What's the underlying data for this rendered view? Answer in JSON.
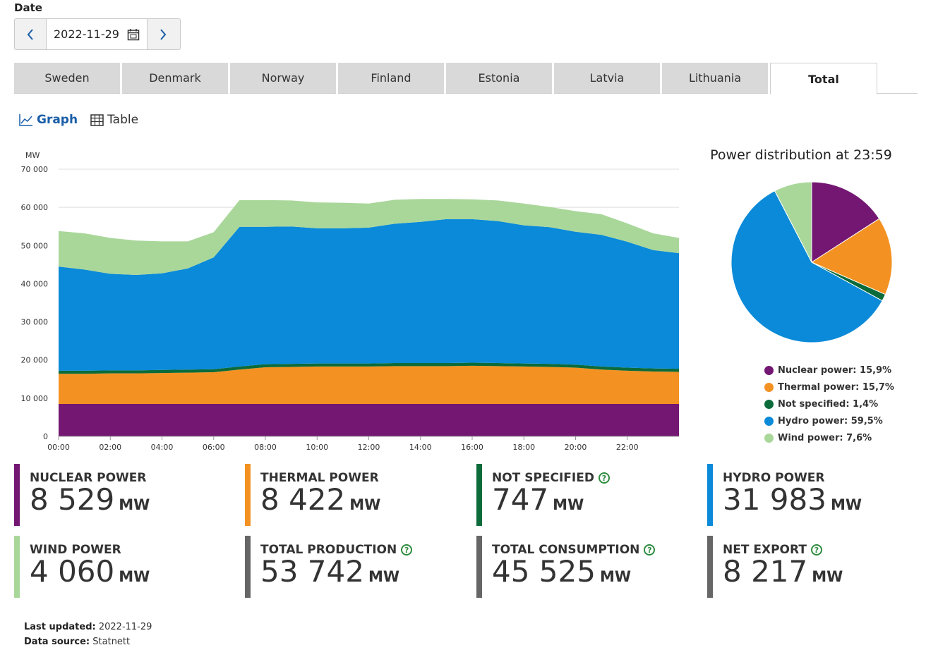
{
  "date_label": "Date",
  "date_value": "2022-11-29",
  "tabs": [
    "Sweden",
    "Denmark",
    "Norway",
    "Finland",
    "Estonia",
    "Latvia",
    "Lithuania",
    "Total"
  ],
  "active_tab": "Total",
  "view": {
    "graph": "Graph",
    "table": "Table"
  },
  "pie_title": "Power distribution at 23:59",
  "legend": [
    {
      "label": "Nuclear power: 15,9%",
      "color": "#731772"
    },
    {
      "label": "Thermal power: 15,7%",
      "color": "#f39222"
    },
    {
      "label": "Not specified: 1,4%",
      "color": "#0b6b3a"
    },
    {
      "label": "Hydro power: 59,5%",
      "color": "#0a8ad8"
    },
    {
      "label": "Wind power: 7,6%",
      "color": "#a9d79a"
    }
  ],
  "stats": [
    {
      "label": "NUCLEAR POWER",
      "value": "8 529",
      "unit": "MW",
      "color": "#731772",
      "help": false
    },
    {
      "label": "THERMAL POWER",
      "value": "8 422",
      "unit": "MW",
      "color": "#f39222",
      "help": false
    },
    {
      "label": "NOT SPECIFIED",
      "value": "747",
      "unit": "MW",
      "color": "#0b6b3a",
      "help": true
    },
    {
      "label": "HYDRO POWER",
      "value": "31 983",
      "unit": "MW",
      "color": "#0a8ad8",
      "help": false
    },
    {
      "label": "WIND POWER",
      "value": "4 060",
      "unit": "MW",
      "color": "#a9d79a",
      "help": false
    },
    {
      "label": "TOTAL PRODUCTION",
      "value": "53 742",
      "unit": "MW",
      "color": "#666666",
      "help": true
    },
    {
      "label": "TOTAL CONSUMPTION",
      "value": "45 525",
      "unit": "MW",
      "color": "#666666",
      "help": true
    },
    {
      "label": "NET EXPORT",
      "value": "8 217",
      "unit": "MW",
      "color": "#666666",
      "help": true
    }
  ],
  "footer": {
    "updated_label": "Last updated:",
    "updated_value": "2022-11-29",
    "source_label": "Data source:",
    "source_value": "Statnett"
  },
  "chart_data": [
    {
      "type": "area",
      "stacked": true,
      "ylabel": "MW",
      "ylim": [
        0,
        70000
      ],
      "yticks": [
        0,
        10000,
        20000,
        30000,
        40000,
        50000,
        60000,
        70000
      ],
      "ytick_labels": [
        "0",
        "10 000",
        "20 000",
        "30 000",
        "40 000",
        "50 000",
        "60 000",
        "70 000"
      ],
      "xticks": [
        0,
        2,
        4,
        6,
        8,
        10,
        12,
        14,
        16,
        18,
        20,
        22
      ],
      "xtick_labels": [
        "00:00",
        "02:00",
        "04:00",
        "06:00",
        "08:00",
        "10:00",
        "12:00",
        "14:00",
        "16:00",
        "18:00",
        "20:00",
        "22:00"
      ],
      "x": [
        0,
        1,
        2,
        3,
        4,
        5,
        6,
        7,
        8,
        9,
        10,
        11,
        12,
        13,
        14,
        15,
        16,
        17,
        18,
        19,
        20,
        21,
        22,
        23,
        24
      ],
      "series": [
        {
          "name": "Nuclear power",
          "color": "#731772",
          "values": [
            8500,
            8500,
            8500,
            8500,
            8500,
            8500,
            8500,
            8500,
            8500,
            8500,
            8500,
            8500,
            8500,
            8500,
            8500,
            8500,
            8500,
            8500,
            8500,
            8500,
            8500,
            8500,
            8500,
            8500,
            8500
          ]
        },
        {
          "name": "Thermal power",
          "color": "#f39222",
          "values": [
            7900,
            7900,
            8000,
            8000,
            8100,
            8200,
            8300,
            9000,
            9600,
            9700,
            9800,
            9800,
            9800,
            9900,
            9900,
            9900,
            10000,
            9900,
            9800,
            9700,
            9500,
            9000,
            8700,
            8500,
            8400
          ]
        },
        {
          "name": "Not specified",
          "color": "#0b6b3a",
          "values": [
            800,
            800,
            800,
            800,
            800,
            800,
            800,
            800,
            800,
            800,
            800,
            800,
            800,
            800,
            800,
            800,
            800,
            800,
            800,
            800,
            800,
            800,
            800,
            800,
            800
          ]
        },
        {
          "name": "Hydro power",
          "color": "#0a8ad8",
          "values": [
            27300,
            26500,
            25300,
            25000,
            25300,
            26500,
            29300,
            36600,
            36000,
            36000,
            35400,
            35400,
            35600,
            36500,
            37000,
            37700,
            37600,
            37200,
            36200,
            35800,
            34800,
            34500,
            33000,
            31000,
            30300
          ]
        },
        {
          "name": "Wind power",
          "color": "#a9d79a",
          "values": [
            9300,
            9500,
            9400,
            9000,
            8400,
            7100,
            6600,
            7000,
            7000,
            6800,
            6800,
            6700,
            6300,
            6300,
            6000,
            5300,
            5200,
            5400,
            5700,
            5300,
            5400,
            5400,
            4800,
            4400,
            4000
          ]
        }
      ]
    },
    {
      "type": "pie",
      "title": "Power distribution at 23:59",
      "categories": [
        "Nuclear power",
        "Thermal power",
        "Not specified",
        "Hydro power",
        "Wind power"
      ],
      "values": [
        15.9,
        15.7,
        1.4,
        59.5,
        7.6
      ],
      "colors": [
        "#731772",
        "#f39222",
        "#0b6b3a",
        "#0a8ad8",
        "#a9d79a"
      ]
    }
  ]
}
